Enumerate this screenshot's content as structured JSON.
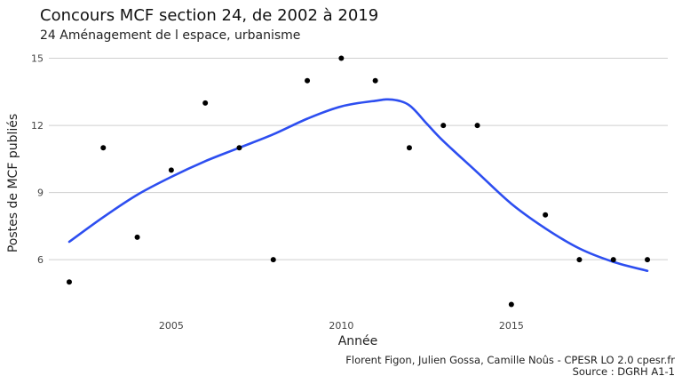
{
  "chart_data": {
    "type": "scatter",
    "title": "Concours MCF section 24, de 2002 à 2019",
    "subtitle": "24 Aménagement de l espace, urbanisme",
    "xlabel": "Année",
    "ylabel": "Postes de MCF publiés",
    "x_ticks": [
      2005,
      2010,
      2015
    ],
    "y_ticks": [
      6,
      9,
      12,
      15
    ],
    "xlim": [
      2001.4,
      2019.6
    ],
    "ylim": [
      3.7,
      15.3
    ],
    "grid": "horizontal major",
    "points": [
      {
        "x": 2002,
        "y": 5
      },
      {
        "x": 2003,
        "y": 11
      },
      {
        "x": 2004,
        "y": 7
      },
      {
        "x": 2005,
        "y": 10
      },
      {
        "x": 2006,
        "y": 13
      },
      {
        "x": 2007,
        "y": 11
      },
      {
        "x": 2008,
        "y": 6
      },
      {
        "x": 2009,
        "y": 14
      },
      {
        "x": 2010,
        "y": 15
      },
      {
        "x": 2011,
        "y": 14
      },
      {
        "x": 2012,
        "y": 11
      },
      {
        "x": 2013,
        "y": 12
      },
      {
        "x": 2014,
        "y": 12
      },
      {
        "x": 2015,
        "y": 4
      },
      {
        "x": 2016,
        "y": 8
      },
      {
        "x": 2017,
        "y": 6
      },
      {
        "x": 2018,
        "y": 6
      },
      {
        "x": 2019,
        "y": 6
      }
    ],
    "smooth": {
      "type": "line",
      "x": [
        2002,
        2003,
        2004,
        2005,
        2006,
        2007,
        2008,
        2009,
        2010,
        2011,
        2011.5,
        2012,
        2012.5,
        2013,
        2014,
        2015,
        2016,
        2017,
        2018,
        2019
      ],
      "y": [
        6.8,
        7.9,
        8.9,
        9.7,
        10.4,
        11.0,
        11.6,
        12.3,
        12.85,
        13.1,
        13.15,
        12.9,
        12.1,
        11.3,
        9.9,
        8.5,
        7.4,
        6.5,
        5.9,
        5.5
      ]
    },
    "colors": {
      "points": "#000000",
      "smooth": "#2d4ef0",
      "grid": "#cfcfcf"
    }
  },
  "caption": {
    "line1": "Florent Figon, Julien Gossa, Camille Noûs - CPESR LO 2.0 cpesr.fr",
    "line2": "Source : DGRH A1-1"
  }
}
